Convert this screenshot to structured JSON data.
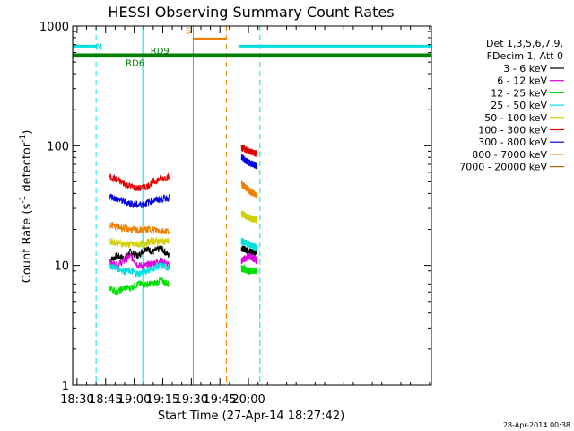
{
  "chart_data": {
    "type": "line",
    "title": "HESSI Observing Summary Count Rates",
    "xlabel": "Start Time (27-Apr-14 18:27:42)",
    "ylabel": "Count Rate (s",
    "ylabel_sup1": "-1",
    "ylabel_mid": " detector",
    "ylabel_sup2": "-1",
    "ylabel_end": ")",
    "yscale": "log",
    "ylim": [
      1,
      1000
    ],
    "xlim_min": [
      1107.7,
      1296
    ],
    "x_ticks": [
      {
        "t": 1110,
        "label": "18:30"
      },
      {
        "t": 1125,
        "label": "18:45"
      },
      {
        "t": 1140,
        "label": "19:00"
      },
      {
        "t": 1155,
        "label": "19:15"
      },
      {
        "t": 1170,
        "label": "19:30"
      },
      {
        "t": 1185,
        "label": "19:45"
      },
      {
        "t": 1200,
        "label": "20:00"
      }
    ],
    "y_ticks": [
      {
        "v": 1,
        "label": "1"
      },
      {
        "v": 10,
        "label": "10"
      },
      {
        "v": 100,
        "label": "100"
      },
      {
        "v": 1000,
        "label": "1000"
      }
    ],
    "legend_header": [
      "Det 1,3,5,6,7,9,",
      "FDecim 1, Att 0"
    ],
    "legend_position": "right",
    "timestamp": "28-Apr-2014 00:38",
    "series": [
      {
        "name": "3 - 6 keV",
        "color": "#000000",
        "segments": [
          {
            "x": [
              1127.2,
              1131,
              1135,
              1138,
              1142,
              1146,
              1150,
              1154,
              1158.3
            ],
            "y": [
              11,
              12,
              11.5,
              13,
              12,
              14,
              13,
              14,
              12
            ]
          },
          {
            "x": [
              1196.3,
              1200.5,
              1204.5
            ],
            "y": [
              14,
              13,
              13
            ]
          }
        ]
      },
      {
        "name": "6 - 12 keV",
        "color": "#e000e0",
        "segments": [
          {
            "x": [
              1127.2,
              1131,
              1135,
              1138,
              1142,
              1146,
              1150,
              1154,
              1158.3
            ],
            "y": [
              10.5,
              10,
              11,
              12,
              10,
              10,
              10.5,
              11,
              10
            ]
          },
          {
            "x": [
              1196.3,
              1200.5,
              1204.5
            ],
            "y": [
              11,
              12,
              11
            ]
          }
        ]
      },
      {
        "name": "12 - 25 keV",
        "color": "#00e000",
        "segments": [
          {
            "x": [
              1127.2,
              1131,
              1135,
              1138,
              1142,
              1146,
              1150,
              1154,
              1158.3
            ],
            "y": [
              6.5,
              6,
              6.5,
              6.5,
              7,
              7,
              7,
              7.5,
              7
            ]
          },
          {
            "x": [
              1196.3,
              1200.5,
              1204.5
            ],
            "y": [
              9.5,
              9,
              9
            ]
          }
        ]
      },
      {
        "name": "25 - 50 keV",
        "color": "#00e0e0",
        "segments": [
          {
            "x": [
              1127.2,
              1131,
              1135,
              1138,
              1142,
              1146,
              1150,
              1154,
              1158.3
            ],
            "y": [
              10,
              9.5,
              9,
              9,
              8.5,
              9,
              9.5,
              10,
              9.5
            ]
          },
          {
            "x": [
              1196.3,
              1200.5,
              1204.5
            ],
            "y": [
              16,
              15,
              14
            ]
          }
        ]
      },
      {
        "name": "50 - 100 keV",
        "color": "#d0d000",
        "segments": [
          {
            "x": [
              1127.2,
              1131,
              1135,
              1138,
              1142,
              1146,
              1150,
              1154,
              1158.3
            ],
            "y": [
              16,
              15.5,
              15,
              15,
              15,
              15.5,
              16,
              16,
              16
            ]
          },
          {
            "x": [
              1196.3,
              1200.5,
              1204.5
            ],
            "y": [
              27,
              25,
              24
            ]
          }
        ]
      },
      {
        "name": "100 - 300 keV",
        "color": "#e00000",
        "segments": [
          {
            "x": [
              1127.2,
              1131,
              1135,
              1138,
              1142,
              1146,
              1150,
              1154,
              1158.3
            ],
            "y": [
              55,
              52,
              48,
              46,
              44,
              45,
              50,
              53,
              55
            ]
          },
          {
            "x": [
              1196.3,
              1200.5,
              1204.5
            ],
            "y": [
              97,
              90,
              85
            ]
          }
        ]
      },
      {
        "name": "300 - 800 keV",
        "color": "#0000e0",
        "segments": [
          {
            "x": [
              1127.2,
              1131,
              1135,
              1138,
              1142,
              1146,
              1150,
              1154,
              1158.3
            ],
            "y": [
              38,
              36,
              34,
              33,
              32,
              33,
              35,
              36,
              37
            ]
          },
          {
            "x": [
              1196.3,
              1200.5,
              1204.5
            ],
            "y": [
              80,
              72,
              68
            ]
          }
        ]
      },
      {
        "name": "800 - 7000 keV",
        "color": "#f08000",
        "segments": [
          {
            "x": [
              1127.2,
              1131,
              1135,
              1138,
              1142,
              1146,
              1150,
              1154,
              1158.3
            ],
            "y": [
              22,
              21,
              20.5,
              20,
              19.5,
              20,
              20,
              19.5,
              19.5
            ]
          },
          {
            "x": [
              1196.3,
              1200.5,
              1204.5
            ],
            "y": [
              48,
              42,
              38
            ]
          }
        ]
      },
      {
        "name": "7000 - 20000 keV",
        "color": "#a06800",
        "segments": []
      }
    ],
    "flag_lines": [
      {
        "label": "N",
        "color": "#00e0e0",
        "y": 680,
        "x": [
          1107.7,
          1120.0
        ]
      },
      {
        "label": "N",
        "color": "#00e0e0",
        "y": 680,
        "x": [
          1195.0,
          1296
        ]
      },
      {
        "label": "S",
        "color": "#f08000",
        "y": 780,
        "x": [
          1171.0,
          1188.4
        ]
      },
      {
        "label": "RD9",
        "color": "#008000",
        "y": 575,
        "x": [
          1107.7,
          1296
        ]
      },
      {
        "label": "RD6",
        "color": "#008000",
        "y": 560,
        "x": [
          1107.7,
          1296
        ]
      }
    ],
    "flag_label_times": {
      "N": 1121.5,
      "S": 1168.5,
      "RD9": 1153.5,
      "RD6": 1140.5
    },
    "vertical_markers": [
      {
        "t": 1107.8,
        "color": "#00e0e0",
        "style": "solid"
      },
      {
        "t": 1120.0,
        "color": "#00e0e0",
        "style": "dashed"
      },
      {
        "t": 1144.5,
        "color": "#00e0e0",
        "style": "solid"
      },
      {
        "t": 1171.0,
        "color": "#f08000",
        "style": "solid"
      },
      {
        "t": 1188.4,
        "color": "#f08000",
        "style": "dashed"
      },
      {
        "t": 1195.0,
        "color": "#00e0e0",
        "style": "solid"
      },
      {
        "t": 1206.0,
        "color": "#00e0e0",
        "style": "dashed"
      }
    ]
  }
}
